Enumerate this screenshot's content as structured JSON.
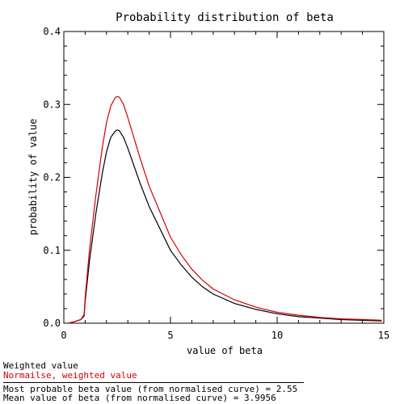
{
  "chart_data": {
    "type": "line",
    "title": "Probability distribution of beta",
    "xlabel": "value of beta",
    "ylabel": "probability of value",
    "xlim": [
      0,
      15
    ],
    "ylim": [
      0,
      0.4
    ],
    "xticks": [
      "0",
      "5",
      "10",
      "15"
    ],
    "yticks": [
      "0.0",
      "0.1",
      "0.2",
      "0.3",
      "0.4"
    ],
    "series": [
      {
        "name": "Weighted value",
        "color": "#000000",
        "x": [
          0.2,
          0.5,
          0.8,
          0.95,
          1.0,
          1.2,
          1.5,
          1.8,
          2.0,
          2.2,
          2.4,
          2.5,
          2.6,
          2.8,
          3.0,
          3.3,
          3.6,
          4.0,
          4.5,
          5.0,
          5.5,
          6.0,
          6.5,
          7.0,
          8.0,
          9.0,
          10.0,
          11.0,
          12.0,
          13.0,
          14.0,
          14.9
        ],
        "values": [
          0.0,
          0.002,
          0.005,
          0.01,
          0.03,
          0.085,
          0.15,
          0.205,
          0.235,
          0.255,
          0.263,
          0.265,
          0.264,
          0.255,
          0.24,
          0.215,
          0.19,
          0.16,
          0.13,
          0.1,
          0.08,
          0.063,
          0.05,
          0.04,
          0.027,
          0.019,
          0.013,
          0.009,
          0.007,
          0.005,
          0.004,
          0.003
        ]
      },
      {
        "name": "Normailse, weighted value",
        "color": "#d40000",
        "x": [
          0.2,
          0.5,
          0.8,
          0.95,
          1.0,
          1.2,
          1.5,
          1.8,
          2.0,
          2.2,
          2.4,
          2.5,
          2.6,
          2.8,
          3.0,
          3.3,
          3.6,
          4.0,
          4.5,
          5.0,
          5.5,
          6.0,
          6.5,
          7.0,
          8.0,
          9.0,
          10.0,
          11.0,
          12.0,
          13.0,
          14.0,
          14.9
        ],
        "values": [
          0.0,
          0.002,
          0.005,
          0.012,
          0.035,
          0.1,
          0.175,
          0.24,
          0.275,
          0.298,
          0.309,
          0.311,
          0.31,
          0.3,
          0.282,
          0.253,
          0.224,
          0.188,
          0.153,
          0.118,
          0.094,
          0.074,
          0.059,
          0.047,
          0.032,
          0.022,
          0.015,
          0.011,
          0.008,
          0.006,
          0.005,
          0.004
        ]
      }
    ],
    "legend_placement": "bottom-left",
    "grid": false
  },
  "annotations": {
    "line3": "Most probable beta value (from normalised curve) = 2.55",
    "line4": "Mean value of beta (from normalised curve) = 3.9956"
  }
}
